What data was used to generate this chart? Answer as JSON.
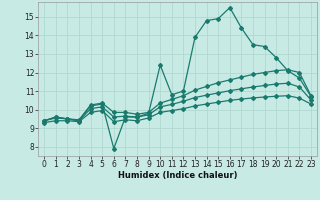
{
  "xlabel": "Humidex (Indice chaleur)",
  "bg_color": "#c8eae4",
  "grid_color": "#b0d8d0",
  "line_color": "#1a7a6e",
  "xlim": [
    -0.5,
    23.5
  ],
  "ylim": [
    7.5,
    15.8
  ],
  "xticks": [
    0,
    1,
    2,
    3,
    4,
    5,
    6,
    7,
    8,
    9,
    10,
    11,
    12,
    13,
    14,
    15,
    16,
    17,
    18,
    19,
    20,
    21,
    22,
    23
  ],
  "yticks": [
    8,
    9,
    10,
    11,
    12,
    13,
    14,
    15
  ],
  "curve1_x": [
    0,
    1,
    2,
    3,
    4,
    5,
    6,
    7,
    8,
    9,
    10,
    11,
    12,
    13,
    14,
    15,
    16,
    17,
    18,
    19,
    20,
    21,
    22,
    23
  ],
  "curve1_y": [
    9.4,
    9.6,
    9.5,
    9.4,
    10.2,
    10.3,
    7.9,
    9.6,
    9.6,
    9.8,
    12.4,
    10.8,
    11.0,
    13.9,
    14.8,
    14.9,
    15.5,
    14.4,
    13.5,
    13.4,
    12.8,
    12.1,
    11.7,
    10.7
  ],
  "curve2_x": [
    0,
    1,
    2,
    3,
    4,
    5,
    6,
    7,
    8,
    9,
    10,
    11,
    12,
    13,
    14,
    15,
    16,
    17,
    18,
    19,
    20,
    21,
    22,
    23
  ],
  "curve2_y": [
    9.4,
    9.6,
    9.5,
    9.45,
    10.25,
    10.35,
    9.85,
    9.85,
    9.75,
    9.85,
    10.35,
    10.55,
    10.75,
    11.05,
    11.25,
    11.45,
    11.6,
    11.75,
    11.9,
    12.0,
    12.1,
    12.15,
    12.0,
    10.75
  ],
  "curve3_x": [
    0,
    1,
    2,
    3,
    4,
    5,
    6,
    7,
    8,
    9,
    10,
    11,
    12,
    13,
    14,
    15,
    16,
    17,
    18,
    19,
    20,
    21,
    22,
    23
  ],
  "curve3_y": [
    9.4,
    9.55,
    9.5,
    9.4,
    10.05,
    10.15,
    9.6,
    9.65,
    9.6,
    9.72,
    10.15,
    10.28,
    10.45,
    10.65,
    10.78,
    10.9,
    11.02,
    11.12,
    11.22,
    11.3,
    11.38,
    11.42,
    11.22,
    10.52
  ],
  "curve4_x": [
    0,
    1,
    2,
    3,
    4,
    5,
    6,
    7,
    8,
    9,
    10,
    11,
    12,
    13,
    14,
    15,
    16,
    17,
    18,
    19,
    20,
    21,
    22,
    23
  ],
  "curve4_y": [
    9.3,
    9.4,
    9.4,
    9.35,
    9.85,
    9.95,
    9.35,
    9.45,
    9.4,
    9.55,
    9.85,
    9.95,
    10.05,
    10.2,
    10.3,
    10.4,
    10.5,
    10.57,
    10.63,
    10.68,
    10.72,
    10.75,
    10.62,
    10.3
  ]
}
